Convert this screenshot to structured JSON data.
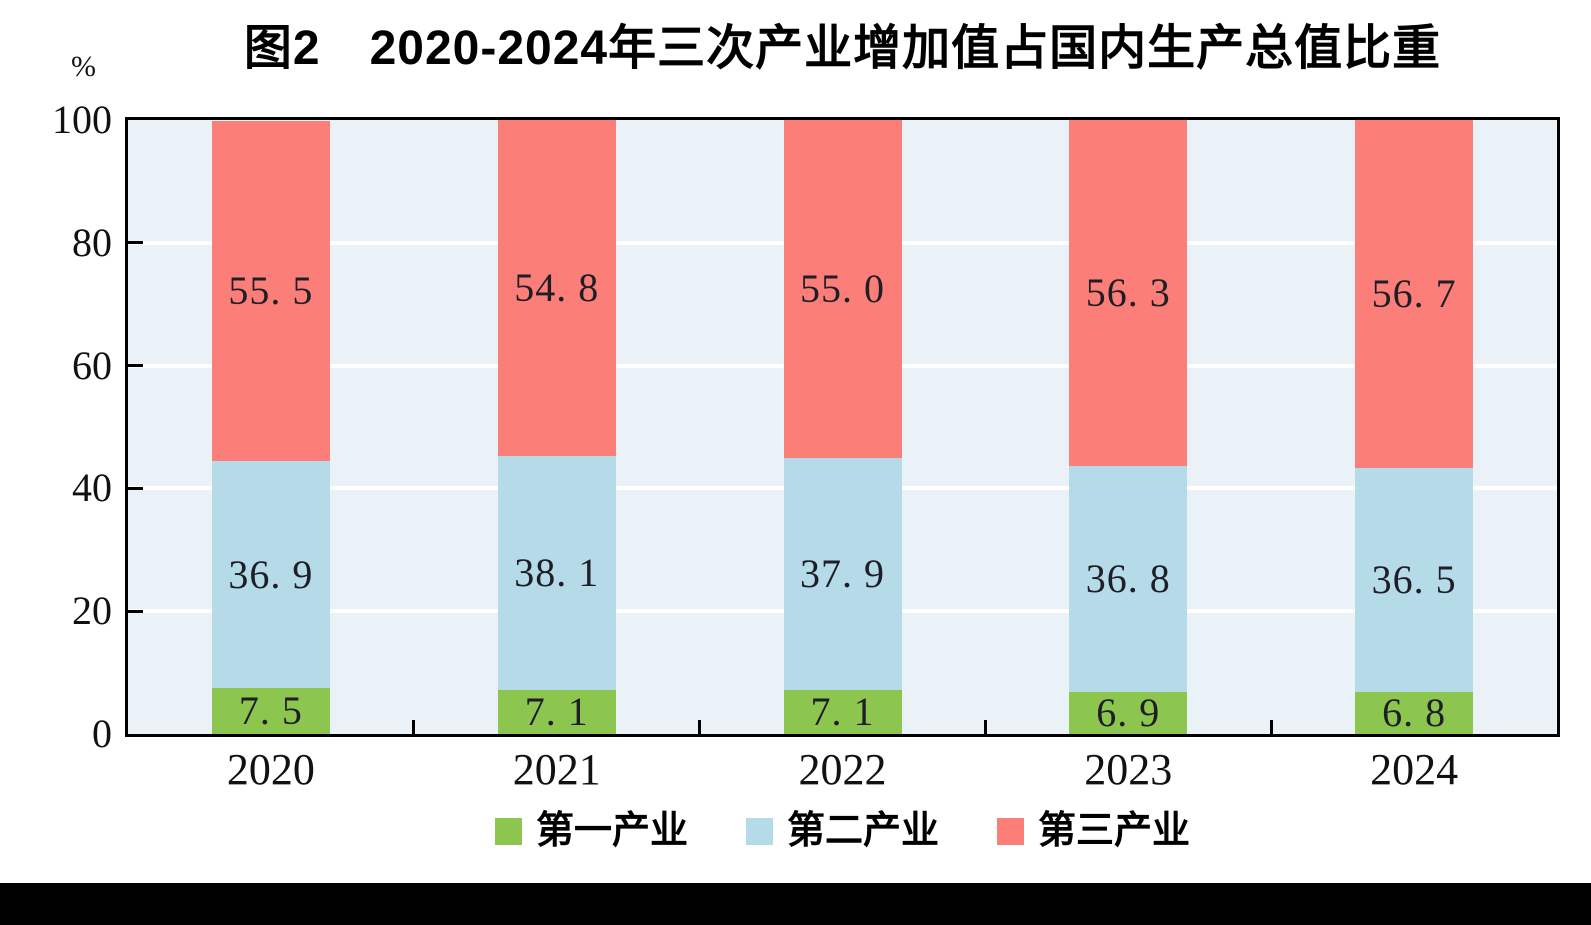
{
  "chart_data": {
    "type": "bar",
    "stacked": true,
    "title": "图2　2020-2024年三次产业增加值占国内生产总值比重",
    "unit_label": "%",
    "categories": [
      "2020",
      "2021",
      "2022",
      "2023",
      "2024"
    ],
    "series": [
      {
        "name": "第一产业",
        "color": "#8DC64F",
        "values": [
          7.5,
          7.1,
          7.1,
          6.9,
          6.8
        ]
      },
      {
        "name": "第二产业",
        "color": "#B6DBE8",
        "values": [
          36.9,
          38.1,
          37.9,
          36.8,
          36.5
        ]
      },
      {
        "name": "第三产业",
        "color": "#FC7E78",
        "values": [
          55.5,
          54.8,
          55.0,
          56.3,
          56.7
        ]
      }
    ],
    "ylim": [
      0,
      100
    ],
    "yticks": [
      0,
      20,
      40,
      60,
      80,
      100
    ],
    "grid": "horizontal",
    "gridline_color": "#ffffff",
    "plot_bg_color": "#EAF2F7",
    "axis_color": "#000000",
    "value_label_color": "#1E1E26",
    "legend_position": "bottom"
  },
  "footer": {
    "bar_color": "#000000"
  }
}
